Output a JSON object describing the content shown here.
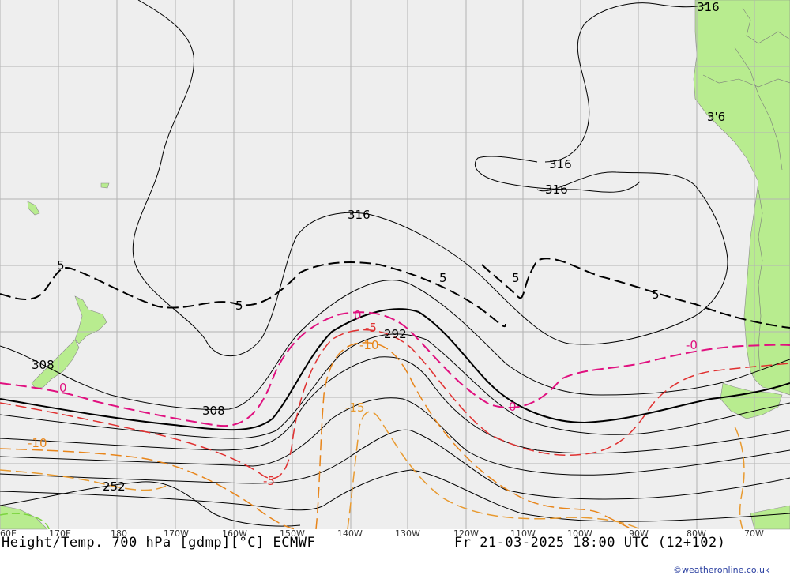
{
  "map": {
    "background_color": "#eeeeee",
    "land_color": "#b8ec8f",
    "grid_color": "#b3b3b3",
    "longitude_labels": [
      "60E",
      "170E",
      "180",
      "170W",
      "160W",
      "150W",
      "140W",
      "130W",
      "120W",
      "110W",
      "100W",
      "90W",
      "80W",
      "70W"
    ],
    "height_contour_labels": [
      "316",
      "316",
      "316",
      "316",
      "3'6",
      "308",
      "308",
      "292",
      "252"
    ],
    "temperature_contour_labels": [
      "5",
      "5",
      "5",
      "5",
      "5",
      "0",
      "0",
      "0",
      "-0",
      "-5",
      "-5",
      "-10",
      "-10",
      "-15"
    ],
    "colors": {
      "height_contour": "#000000",
      "temp_positive": "#000000",
      "temp_zero": "#e0107f",
      "temp_minus5": "#e03030",
      "temp_minus10": "#e8851a",
      "temp_minus15": "#e89a30"
    }
  },
  "footer": {
    "title": "Height/Temp. 700 hPa [gdmp][°C] ECMWF",
    "valid_time": "Fr 21-03-2025 18:00 UTC (12+102)",
    "credit": "©weatheronline.co.uk"
  }
}
